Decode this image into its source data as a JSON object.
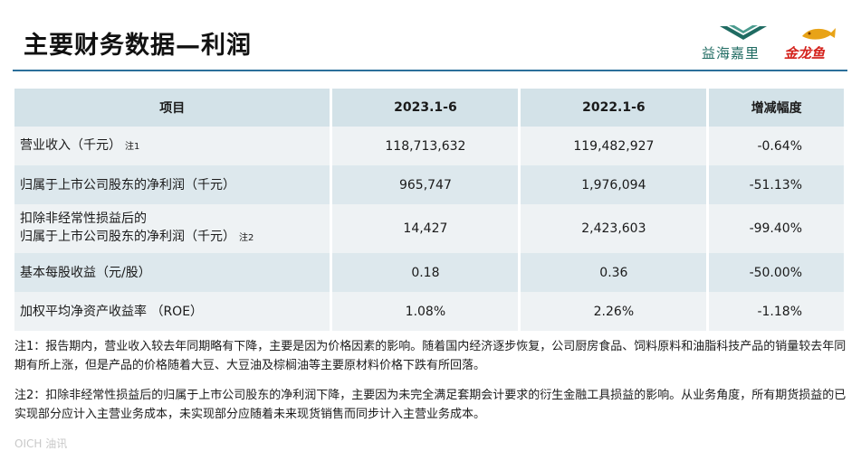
{
  "header": {
    "title": "主要财务数据—利润",
    "logo_yihai": "益海嘉里",
    "logo_jinlongyu": "金龙鱼",
    "accent_color": "#2b6f9a"
  },
  "table": {
    "columns": [
      "项目",
      "2023.1-6",
      "2022.1-6",
      "增减幅度"
    ],
    "rows": [
      {
        "label": "营业收入（千元）",
        "note": "注1",
        "v2023": "118,713,632",
        "v2022": "119,482,927",
        "change": "-0.64%"
      },
      {
        "label": "归属于上市公司股东的净利润（千元）",
        "v2023": "965,747",
        "v2022": "1,976,094",
        "change": "-51.13%"
      },
      {
        "label_line1": "扣除非经常性损益后的",
        "label_line2": "归属于上市公司股东的净利润（千元）",
        "note": "注2",
        "v2023": "14,427",
        "v2022": "2,423,603",
        "change": "-99.40%"
      },
      {
        "label": "基本每股收益（元/股）",
        "v2023": "0.18",
        "v2022": "0.36",
        "change": "-50.00%"
      },
      {
        "label": "加权平均净资产收益率 （ROE）",
        "v2023": "1.08%",
        "v2022": "2.26%",
        "change": "-1.18%"
      }
    ]
  },
  "notes": {
    "note1": "注1：报告期内，营业收入较去年同期略有下降，主要是因为价格因素的影响。随着国内经济逐步恢复，公司厨房食品、饲料原料和油脂科技产品的销量较去年同期有所上涨，但是产品的价格随着大豆、大豆油及棕榈油等主要原材料价格下跌有所回落。",
    "note2": "注2：扣除非经常性损益后的归属于上市公司股东的净利润下降，主要因为未完全满足套期会计要求的衍生金融工具损益的影响。从业务角度，所有期货损益的已实现部分应计入主营业务成本，未实现部分应随着未来现货销售而同步计入主营业务成本。"
  },
  "watermark": "OICH 油讯"
}
